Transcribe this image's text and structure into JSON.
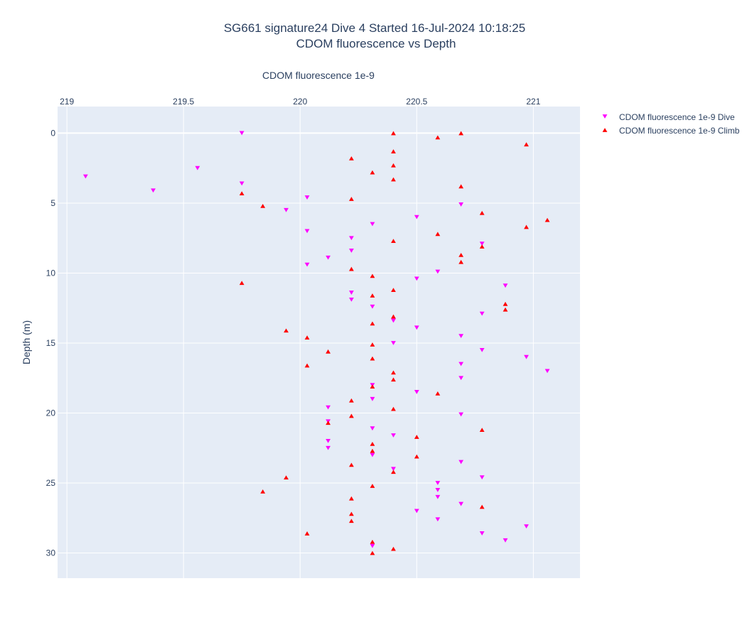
{
  "chart_data": {
    "type": "scatter",
    "title": "SG661 signature24 Dive 4 Started 16-Jul-2024 10:18:25",
    "subtitle": "CDOM fluorescence vs Depth",
    "xlabel": "CDOM fluorescence 1e-9",
    "ylabel": "Depth (m)",
    "x_axis_position": "top",
    "y_reversed": true,
    "xlim": [
      218.96,
      221.2
    ],
    "ylim": [
      31.8,
      -1.9
    ],
    "x_ticks": [
      219,
      219.5,
      220,
      220.5,
      221
    ],
    "x_tick_labels": [
      "219",
      "219.5",
      "220",
      "220.5",
      "221"
    ],
    "y_ticks": [
      0,
      5,
      10,
      15,
      20,
      25,
      30
    ],
    "y_tick_labels": [
      "0",
      "5",
      "10",
      "15",
      "20",
      "25",
      "30"
    ],
    "grid": true,
    "legend_position": "top-right",
    "colors": {
      "plot_background": "#e5ecf6",
      "grid": "#ffffff",
      "text": "#2a3f5f",
      "dive": "#ff00ff",
      "climb": "#ff0000"
    },
    "series": [
      {
        "name": "CDOM fluorescence 1e-9 Dive",
        "marker": "triangle-down",
        "color": "#ff00ff",
        "x": [
          219.75,
          219.56,
          219.08,
          219.75,
          219.37,
          220.03,
          219.94,
          220.69,
          220.5,
          220.31,
          220.03,
          220.22,
          220.78,
          220.22,
          220.12,
          220.03,
          220.59,
          220.5,
          220.88,
          220.22,
          220.22,
          220.31,
          220.78,
          220.4,
          220.5,
          220.69,
          220.4,
          220.78,
          220.97,
          220.69,
          221.06,
          220.69,
          220.31,
          220.5,
          220.31,
          220.12,
          220.69,
          220.12,
          220.31,
          220.4,
          220.12,
          220.12,
          220.31,
          220.69,
          220.4,
          220.78,
          220.59,
          220.59,
          220.59,
          220.69,
          220.5,
          220.59,
          220.97,
          220.78,
          220.88,
          220.31
        ],
        "y": [
          0.0,
          2.5,
          3.1,
          3.6,
          4.1,
          4.6,
          5.5,
          5.1,
          6.0,
          6.5,
          7.0,
          7.5,
          7.9,
          8.4,
          8.9,
          9.4,
          9.9,
          10.4,
          10.9,
          11.4,
          11.9,
          12.4,
          12.9,
          13.4,
          13.9,
          14.5,
          15.0,
          15.5,
          16.0,
          16.5,
          17.0,
          17.5,
          18.0,
          18.5,
          19.0,
          19.6,
          20.1,
          20.6,
          21.1,
          21.6,
          22.0,
          22.5,
          23.0,
          23.5,
          24.0,
          24.6,
          25.0,
          25.5,
          26.0,
          26.5,
          27.0,
          27.6,
          28.1,
          28.6,
          29.1,
          29.5
        ]
      },
      {
        "name": "CDOM fluorescence 1e-9 Climb",
        "marker": "triangle-up",
        "color": "#ff0000",
        "x": [
          220.4,
          220.69,
          220.59,
          220.97,
          220.4,
          220.22,
          220.4,
          220.31,
          220.4,
          220.69,
          219.75,
          220.22,
          219.84,
          220.78,
          221.06,
          220.97,
          220.59,
          220.4,
          220.78,
          220.69,
          220.69,
          220.22,
          220.31,
          219.75,
          220.4,
          220.31,
          220.88,
          220.88,
          220.4,
          220.31,
          219.94,
          220.03,
          220.31,
          220.12,
          220.31,
          220.03,
          220.4,
          220.4,
          220.31,
          220.59,
          220.22,
          220.4,
          220.22,
          220.12,
          220.78,
          220.5,
          220.31,
          220.31,
          220.5,
          220.22,
          220.4,
          219.94,
          220.31,
          219.84,
          220.22,
          220.78,
          220.22,
          220.22,
          220.03,
          220.31,
          220.4,
          220.31
        ],
        "y": [
          0.0,
          0.0,
          0.3,
          0.8,
          1.3,
          1.8,
          2.3,
          2.8,
          3.3,
          3.8,
          4.3,
          4.7,
          5.2,
          5.7,
          6.2,
          6.7,
          7.2,
          7.7,
          8.1,
          8.7,
          9.2,
          9.7,
          10.2,
          10.7,
          11.2,
          11.6,
          12.2,
          12.6,
          13.1,
          13.6,
          14.1,
          14.6,
          15.1,
          15.6,
          16.1,
          16.6,
          17.1,
          17.6,
          18.1,
          18.6,
          19.1,
          19.7,
          20.2,
          20.7,
          21.2,
          21.7,
          22.2,
          22.7,
          23.1,
          23.7,
          24.2,
          24.6,
          25.2,
          25.6,
          26.1,
          26.7,
          27.2,
          27.7,
          28.6,
          29.2,
          29.7,
          30.0
        ]
      }
    ]
  }
}
